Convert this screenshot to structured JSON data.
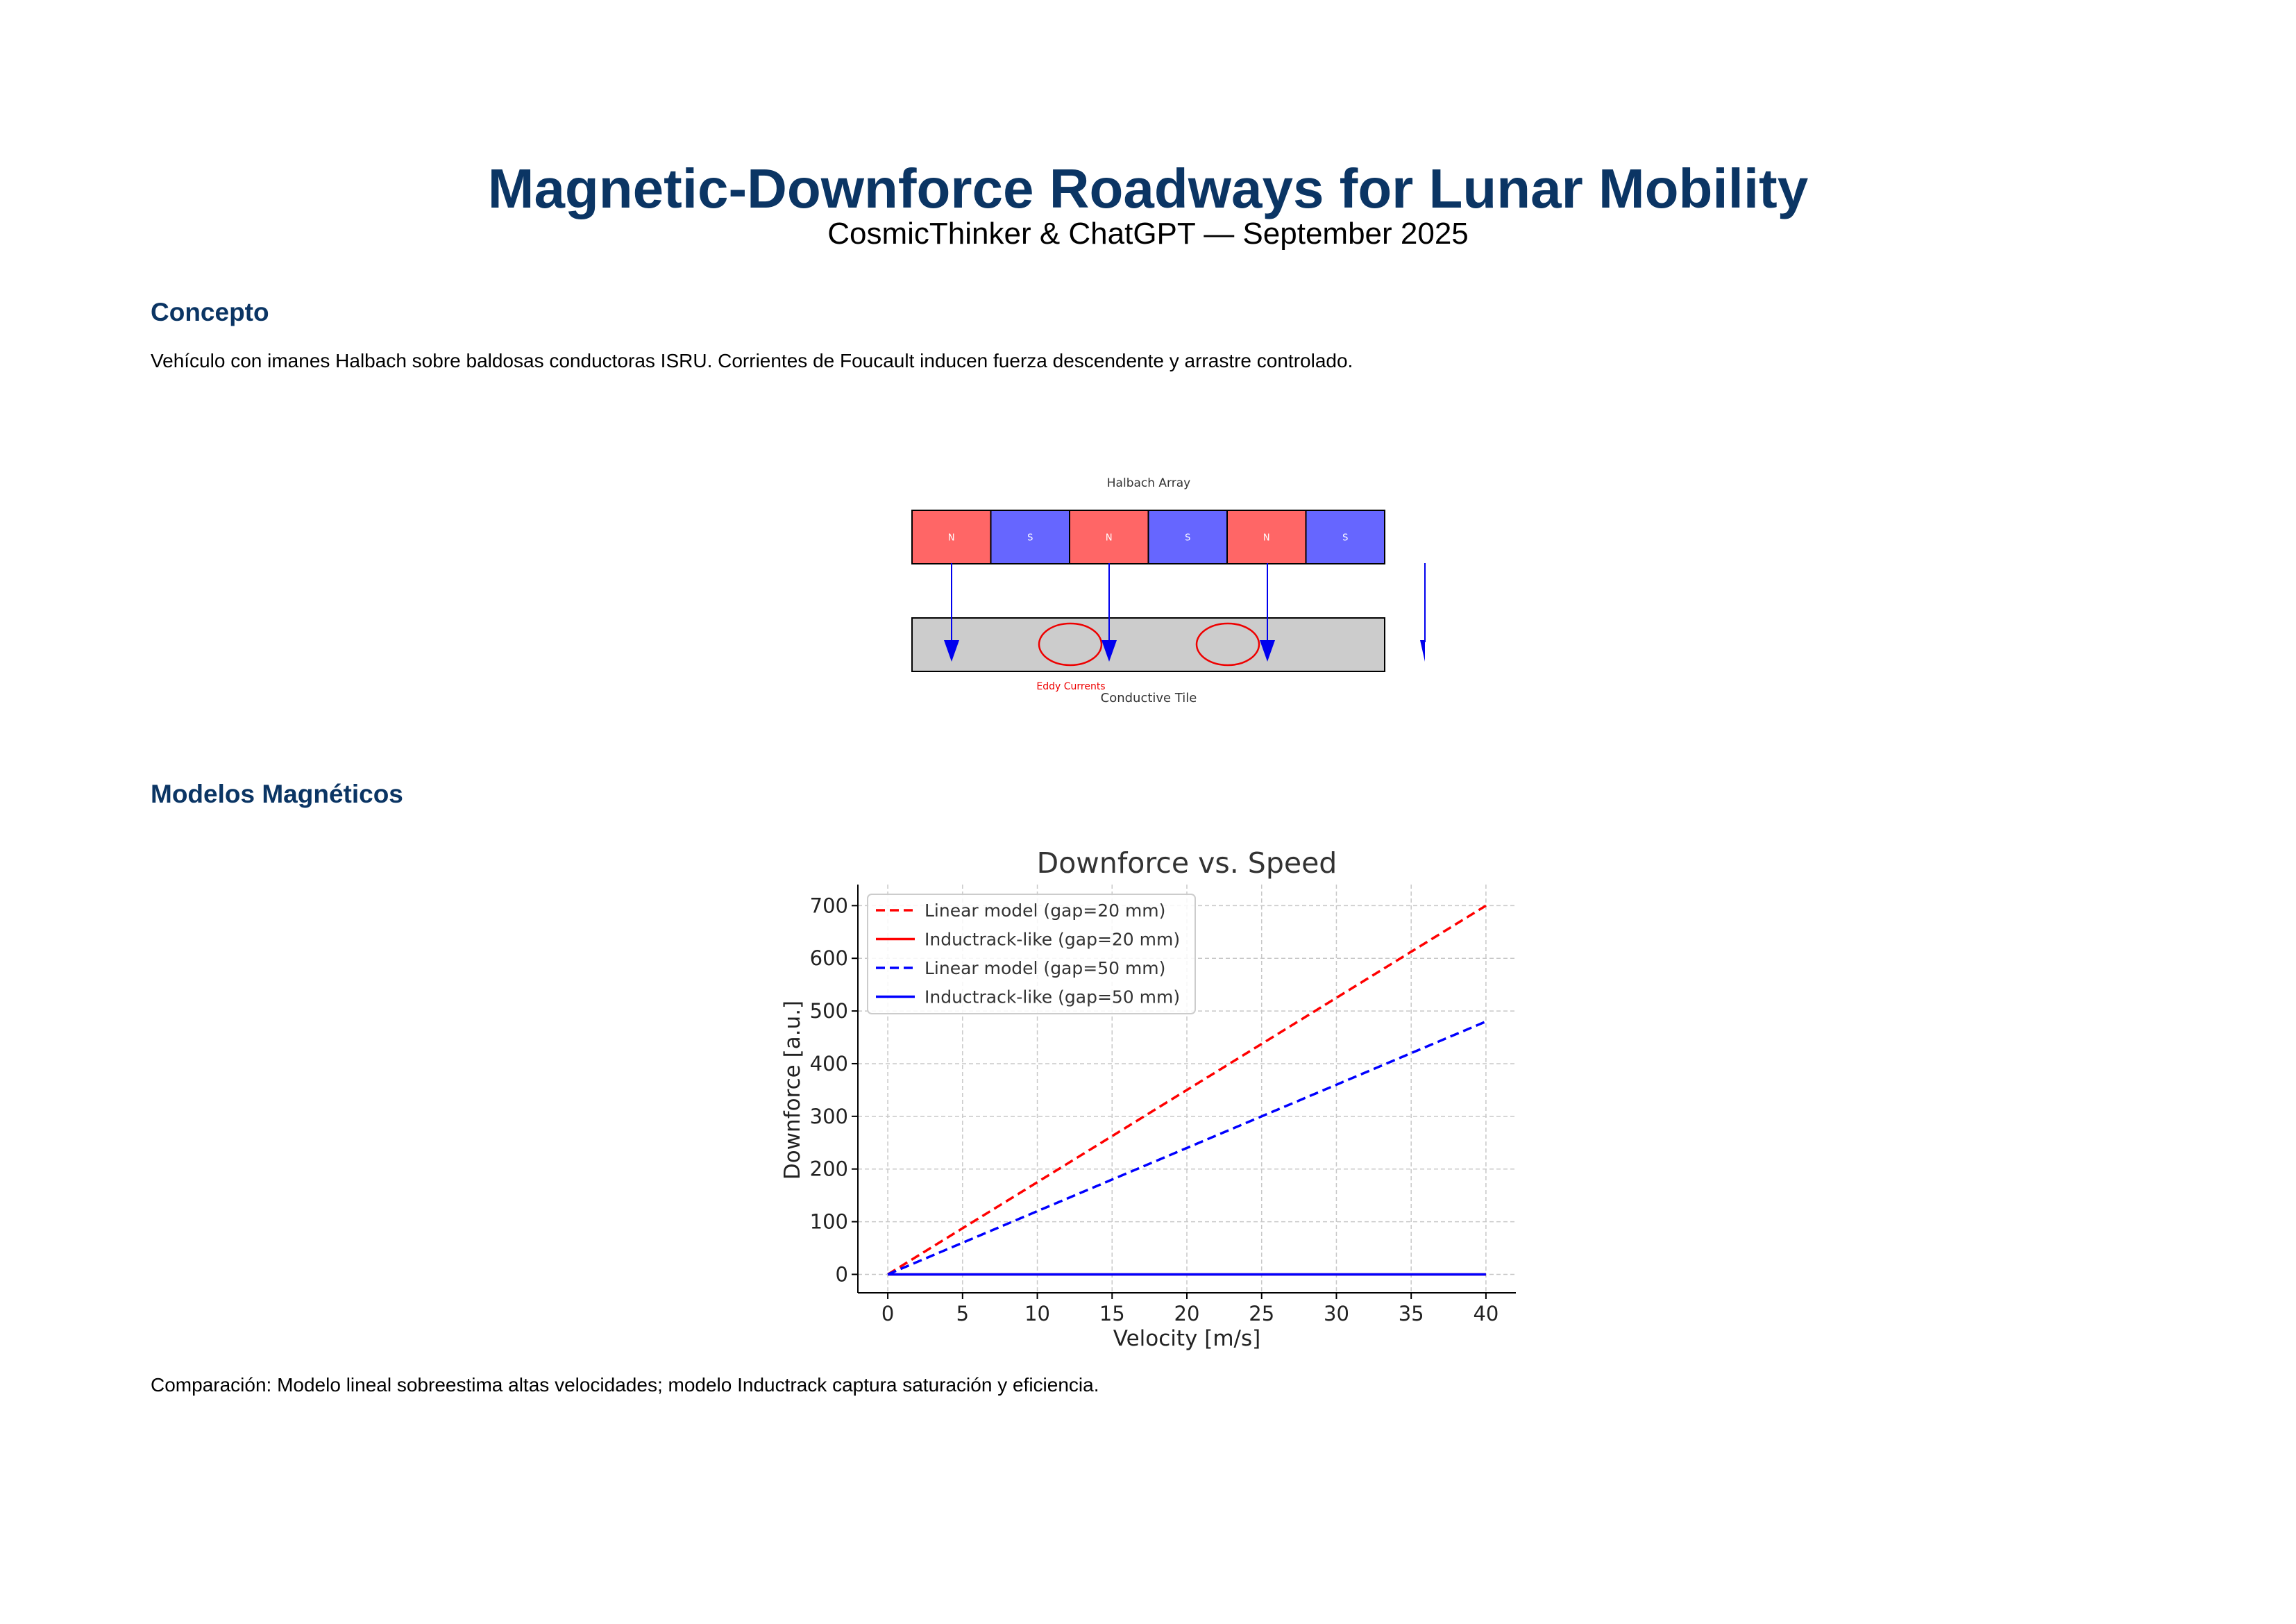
{
  "document": {
    "title": "Magnetic-Downforce Roadways for Lunar Mobility",
    "subtitle": "CosmicThinker & ChatGPT — September 2025"
  },
  "concept": {
    "heading": "Concepto",
    "text": "Vehículo con imanes Halbach sobre baldosas conductoras ISRU. Corrientes de Foucault inducen fuerza descendente y arrastre controlado."
  },
  "diagram": {
    "array_label": "Halbach Array",
    "magnets": [
      "N",
      "S",
      "N",
      "S",
      "N",
      "S"
    ],
    "colors": {
      "north": "#ff6666",
      "south": "#6666ff",
      "tile": "#cccccc",
      "arrow": "#0000ee",
      "eddy": "#ee0000"
    },
    "eddy_label": "Eddy Currents",
    "tile_label": "Conductive Tile"
  },
  "models": {
    "heading": "Modelos Magnéticos",
    "caption": "Comparación: Modelo lineal sobreestima altas velocidades; modelo Inductrack captura saturación y eficiencia."
  },
  "chart_data": {
    "type": "line",
    "title": "Downforce vs. Speed",
    "xlabel": "Velocity [m/s]",
    "ylabel": "Downforce [a.u.]",
    "xlim": [
      -2,
      42
    ],
    "ylim": [
      -35,
      740
    ],
    "xticks": [
      0,
      5,
      10,
      15,
      20,
      25,
      30,
      35,
      40
    ],
    "yticks": [
      0,
      100,
      200,
      300,
      400,
      500,
      600,
      700
    ],
    "grid": true,
    "legend_position": "upper-left",
    "x": [
      0,
      40
    ],
    "series": [
      {
        "name": "Linear model (gap=20 mm)",
        "color": "#ff0000",
        "style": "dashed",
        "values": [
          0,
          700
        ]
      },
      {
        "name": "Inductrack-like (gap=20 mm)",
        "color": "#ff0000",
        "style": "solid",
        "values": [
          0,
          0
        ]
      },
      {
        "name": "Linear model (gap=50 mm)",
        "color": "#0000ff",
        "style": "dashed",
        "values": [
          0,
          480
        ]
      },
      {
        "name": "Inductrack-like (gap=50 mm)",
        "color": "#0000ff",
        "style": "solid",
        "values": [
          0,
          0
        ]
      }
    ]
  }
}
